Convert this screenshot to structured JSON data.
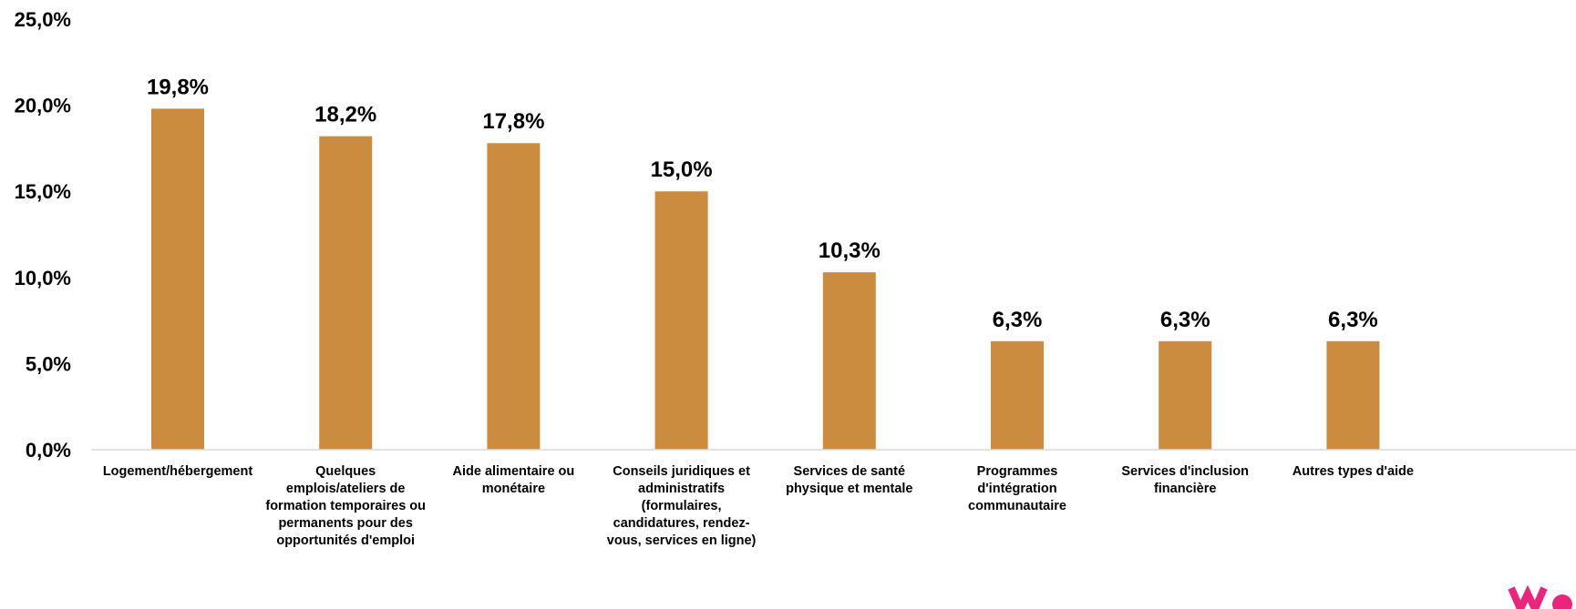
{
  "chart_data": {
    "type": "bar",
    "categories": [
      "Logement/hébergement",
      "Quelques emplois/ateliers de formation temporaires ou permanents pour des opportunités d'emploi",
      "Aide alimentaire ou monétaire",
      "Conseils juridiques et administratifs (formulaires, candidatures, rendez-vous, services en ligne)",
      "Services de santé physique et mentale",
      "Programmes d'intégration communautaire",
      "Services d'inclusion financière",
      "Autres types d'aide"
    ],
    "category_lines": [
      [
        "Logement/hébergement"
      ],
      [
        "Quelques",
        "emplois/ateliers de",
        "formation temporaires ou",
        "permanents pour des",
        "opportunités d'emploi"
      ],
      [
        "Aide alimentaire ou",
        "monétaire"
      ],
      [
        "Conseils juridiques et",
        "administratifs",
        "(formulaires,",
        "candidatures, rendez-",
        "vous, services en ligne)"
      ],
      [
        "Services de santé",
        "physique et mentale"
      ],
      [
        "Programmes",
        "d'intégration",
        "communautaire"
      ],
      [
        "Services d'inclusion",
        "financière"
      ],
      [
        "Autres types d'aide"
      ]
    ],
    "values": [
      19.8,
      18.2,
      17.8,
      15.0,
      10.3,
      6.3,
      6.3,
      6.3
    ],
    "data_labels": [
      "19,8%",
      "18,2%",
      "17,8%",
      "15,0%",
      "10,3%",
      "6,3%",
      "6,3%",
      "6,3%"
    ],
    "ylim": [
      0,
      25
    ],
    "y_ticks": [
      0,
      5,
      10,
      15,
      20,
      25
    ],
    "y_tick_labels": [
      "0,0%",
      "5,0%",
      "10,0%",
      "15,0%",
      "20,0%",
      "25,0%"
    ],
    "bar_color": "#CC8C3F",
    "grid": false,
    "legend": "none",
    "title": "",
    "xlabel": "",
    "ylabel": ""
  },
  "logo": {
    "color": "#E8267C",
    "icon": "brand-logo-icon"
  }
}
